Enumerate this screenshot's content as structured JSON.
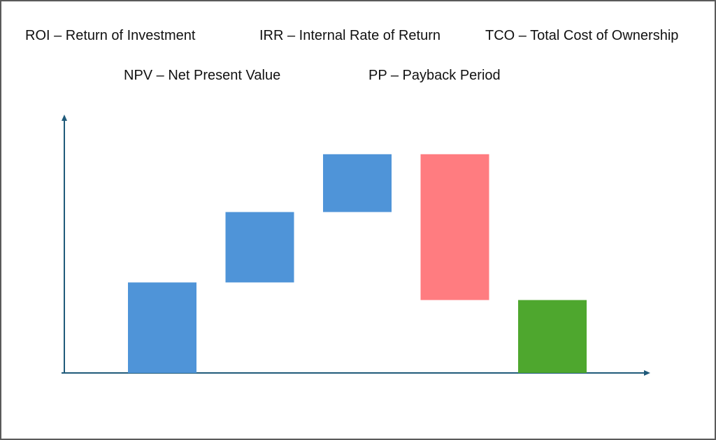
{
  "legend_terms": [
    "ROI – Return of Investment",
    "IRR – Internal Rate of Return",
    "TCO – Total Cost of Ownership",
    "NPV – Net Present Value",
    "PP – Payback Period"
  ],
  "chart_data": {
    "type": "waterfall",
    "title": "",
    "xlabel": "",
    "ylabel": "",
    "ylim": [
      0,
      100
    ],
    "grid": false,
    "axis_color": "#1f5a7a",
    "steps": [
      {
        "value": 36,
        "kind": "increase",
        "color": "#4f94d8"
      },
      {
        "value": 28,
        "kind": "increase",
        "color": "#4f94d8"
      },
      {
        "value": 23,
        "kind": "increase",
        "color": "#4f94d8"
      },
      {
        "value": -58,
        "kind": "decrease",
        "color": "#ff7c80"
      },
      {
        "value": 29,
        "kind": "total",
        "color": "#4ea72e"
      }
    ]
  }
}
